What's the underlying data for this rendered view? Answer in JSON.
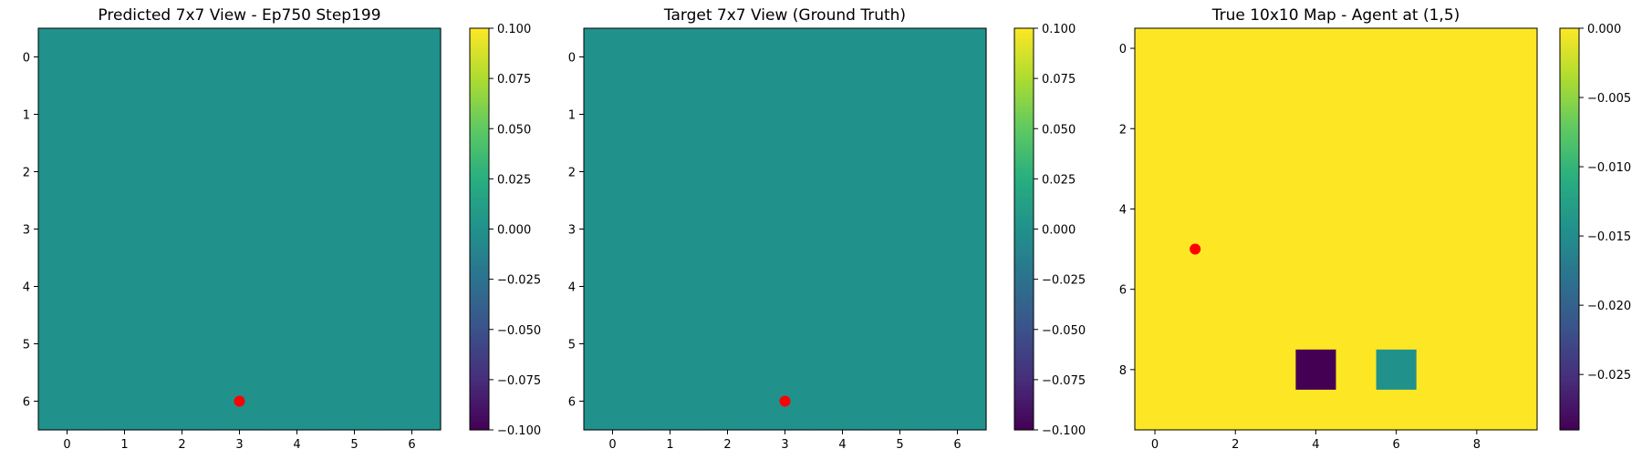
{
  "chart_data": [
    {
      "type": "heatmap",
      "title": "Predicted 7x7 View - Ep750 Step199",
      "rows": 7,
      "cols": 7,
      "values": [
        [
          0,
          0,
          0,
          0,
          0,
          0,
          0
        ],
        [
          0,
          0,
          0,
          0,
          0,
          0,
          0
        ],
        [
          0,
          0,
          0,
          0,
          0,
          0,
          0
        ],
        [
          0,
          0,
          0,
          0,
          0,
          0,
          0
        ],
        [
          0,
          0,
          0,
          0,
          0,
          0,
          0
        ],
        [
          0,
          0,
          0,
          0,
          0,
          0,
          0
        ],
        [
          0,
          0,
          0,
          0,
          0,
          0,
          0
        ]
      ],
      "vmin": -0.1,
      "vmax": 0.1,
      "colormap": "viridis",
      "x_ticks": [
        0,
        1,
        2,
        3,
        4,
        5,
        6
      ],
      "y_ticks": [
        0,
        1,
        2,
        3,
        4,
        5,
        6
      ],
      "colorbar_ticks": [
        "0.100",
        "0.075",
        "0.050",
        "0.025",
        "0.000",
        "−0.025",
        "−0.050",
        "−0.075",
        "−0.100"
      ],
      "marker": {
        "x": 3,
        "y": 6,
        "color": "#ff0000"
      }
    },
    {
      "type": "heatmap",
      "title": "Target 7x7 View (Ground Truth)",
      "rows": 7,
      "cols": 7,
      "values": [
        [
          0,
          0,
          0,
          0,
          0,
          0,
          0
        ],
        [
          0,
          0,
          0,
          0,
          0,
          0,
          0
        ],
        [
          0,
          0,
          0,
          0,
          0,
          0,
          0
        ],
        [
          0,
          0,
          0,
          0,
          0,
          0,
          0
        ],
        [
          0,
          0,
          0,
          0,
          0,
          0,
          0
        ],
        [
          0,
          0,
          0,
          0,
          0,
          0,
          0
        ],
        [
          0,
          0,
          0,
          0,
          0,
          0,
          0
        ]
      ],
      "vmin": -0.1,
      "vmax": 0.1,
      "colormap": "viridis",
      "x_ticks": [
        0,
        1,
        2,
        3,
        4,
        5,
        6
      ],
      "y_ticks": [
        0,
        1,
        2,
        3,
        4,
        5,
        6
      ],
      "colorbar_ticks": [
        "0.100",
        "0.075",
        "0.050",
        "0.025",
        "0.000",
        "−0.025",
        "−0.050",
        "−0.075",
        "−0.100"
      ],
      "marker": {
        "x": 3,
        "y": 6,
        "color": "#ff0000"
      }
    },
    {
      "type": "heatmap",
      "title": "True 10x10 Map - Agent at (1,5)",
      "rows": 10,
      "cols": 10,
      "values": [
        [
          0,
          0,
          0,
          0,
          0,
          0,
          0,
          0,
          0,
          0
        ],
        [
          0,
          0,
          0,
          0,
          0,
          0,
          0,
          0,
          0,
          0
        ],
        [
          0,
          0,
          0,
          0,
          0,
          0,
          0,
          0,
          0,
          0
        ],
        [
          0,
          0,
          0,
          0,
          0,
          0,
          0,
          0,
          0,
          0
        ],
        [
          0,
          0,
          0,
          0,
          0,
          0,
          0,
          0,
          0,
          0
        ],
        [
          0,
          0,
          0,
          0,
          0,
          0,
          0,
          0,
          0,
          0
        ],
        [
          0,
          0,
          0,
          0,
          0,
          0,
          0,
          0,
          0,
          0
        ],
        [
          0,
          0,
          0,
          0,
          0,
          0,
          0,
          0,
          0,
          0
        ],
        [
          0,
          0,
          0,
          0,
          -0.029,
          0,
          -0.0145,
          0,
          0,
          0
        ],
        [
          0,
          0,
          0,
          0,
          0,
          0,
          0,
          0,
          0,
          0
        ]
      ],
      "vmin": -0.029,
      "vmax": 0.0,
      "colormap": "viridis",
      "x_ticks": [
        0,
        2,
        4,
        6,
        8
      ],
      "y_ticks": [
        0,
        2,
        4,
        6,
        8
      ],
      "colorbar_ticks": [
        "0.000",
        "−0.005",
        "−0.010",
        "−0.015",
        "−0.020",
        "−0.025"
      ],
      "marker": {
        "x": 1,
        "y": 5,
        "color": "#ff0000"
      }
    }
  ]
}
